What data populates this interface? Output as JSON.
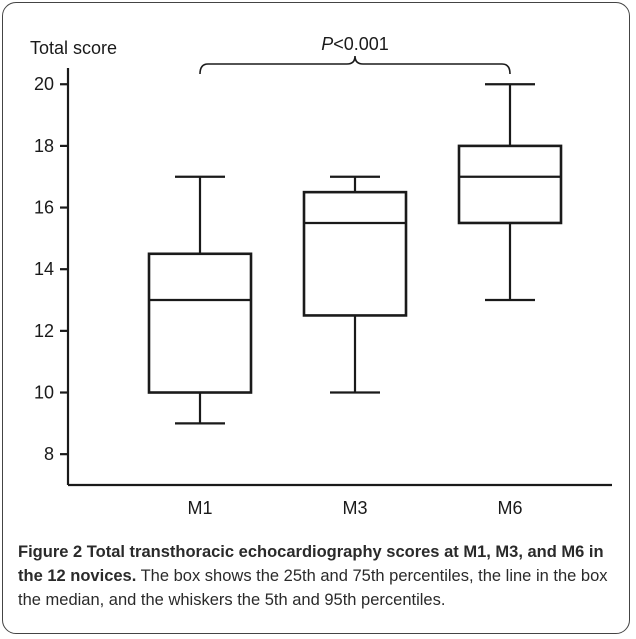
{
  "chart_data": {
    "type": "box",
    "ylabel": "Total score",
    "ylim": [
      7,
      21.5
    ],
    "yticks": [
      8,
      10,
      12,
      14,
      16,
      18,
      20
    ],
    "categories": [
      "M1",
      "M3",
      "M6"
    ],
    "boxes": [
      {
        "label": "M1",
        "whisker_low": 9,
        "q1": 10,
        "median": 13,
        "q3": 14.5,
        "whisker_high": 17
      },
      {
        "label": "M3",
        "whisker_low": 10,
        "q1": 12.5,
        "median": 15.5,
        "q3": 16.5,
        "whisker_high": 17
      },
      {
        "label": "M6",
        "whisker_low": 13,
        "q1": 15.5,
        "median": 17,
        "q3": 18,
        "whisker_high": 20
      }
    ],
    "significance": {
      "from": "M1",
      "to": "M6",
      "p_prefix": "P",
      "p_rest": "<0.001"
    }
  },
  "caption": {
    "title": "Figure 2 Total transthoracic echocardiography scores at M1, M3, and M6 in the 12 novices.",
    "body": " The box shows the 25th and 75th percentiles, the line in the box the median, and the whiskers the 5th and 95th percentiles."
  }
}
